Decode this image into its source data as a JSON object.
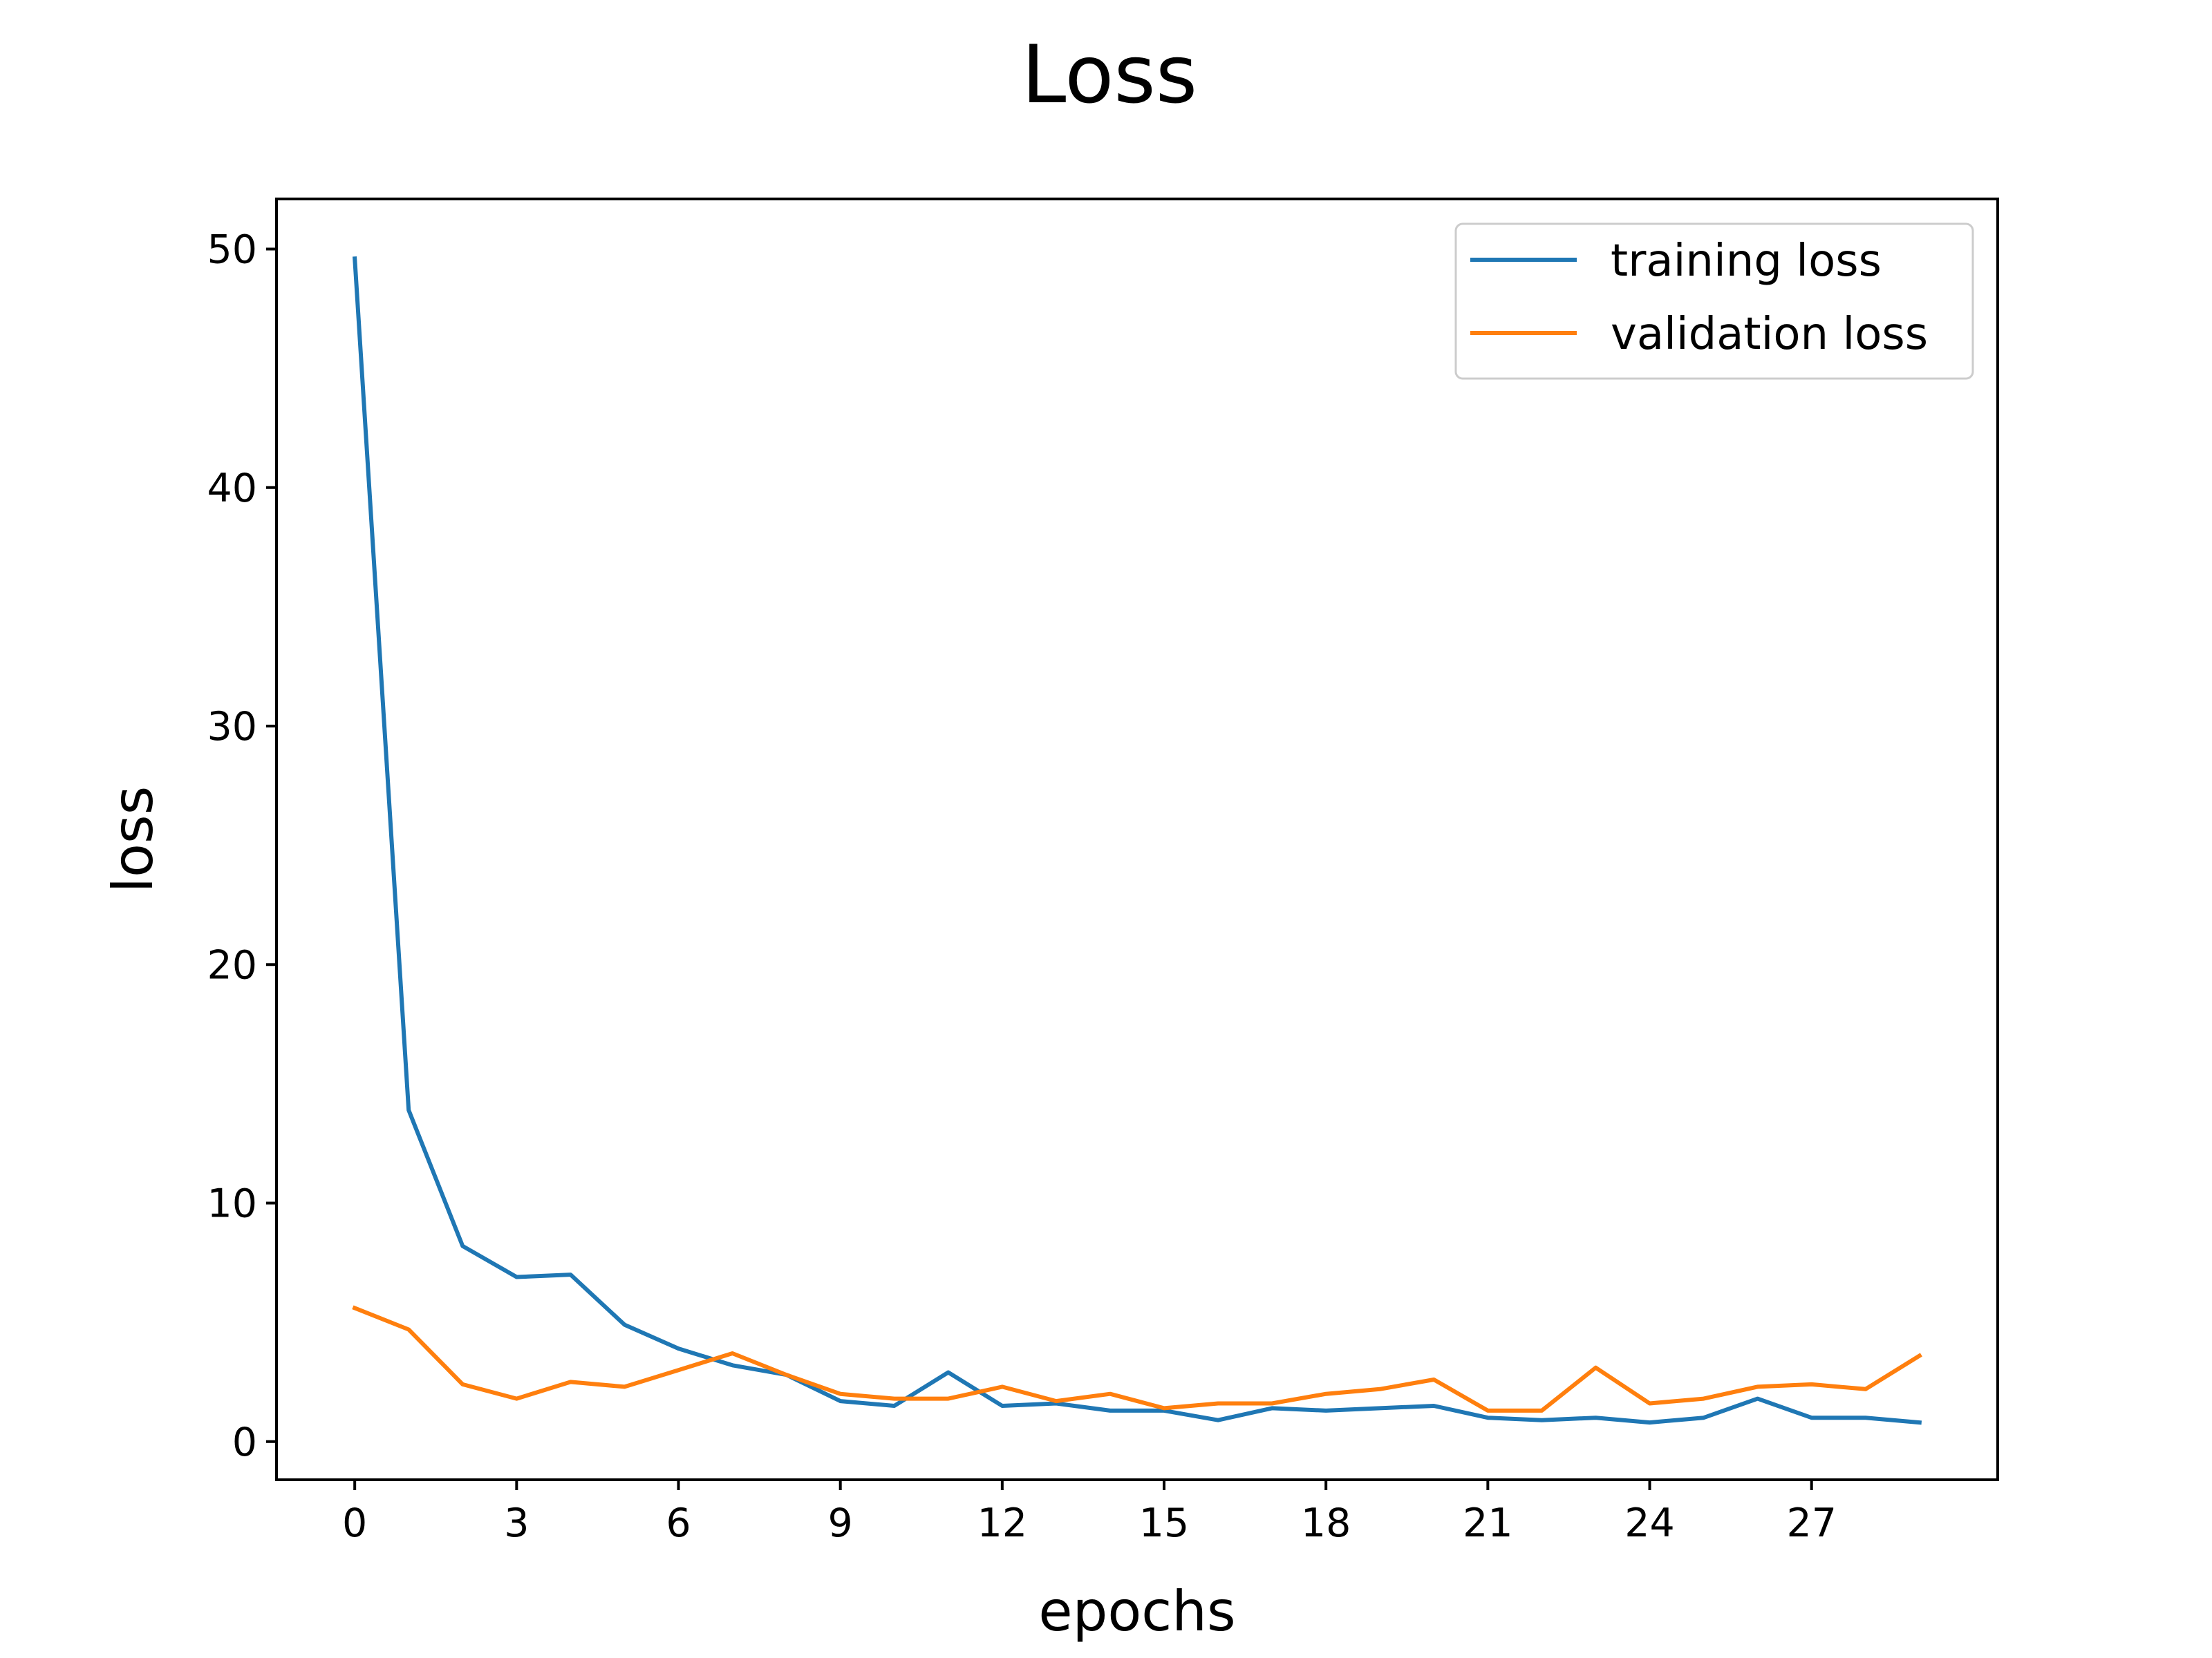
{
  "chart_data": {
    "type": "line",
    "title": "Loss",
    "xlabel": "epochs",
    "ylabel": "loss",
    "xlim": [
      -1.45,
      30.45
    ],
    "ylim": [
      -1.6,
      52.1
    ],
    "xticks": [
      0,
      3,
      6,
      9,
      12,
      15,
      18,
      21,
      24,
      27
    ],
    "yticks": [
      0,
      10,
      20,
      30,
      40,
      50
    ],
    "grid": false,
    "legend": "top-right",
    "x": [
      0,
      1,
      2,
      3,
      4,
      5,
      6,
      7,
      8,
      9,
      10,
      11,
      12,
      13,
      14,
      15,
      16,
      17,
      18,
      19,
      20,
      21,
      22,
      23,
      24,
      25,
      26,
      27,
      28,
      29
    ],
    "series": [
      {
        "name": "training loss",
        "color": "#1f77b4",
        "values": [
          49.6,
          13.9,
          8.2,
          6.9,
          7.0,
          4.9,
          3.9,
          3.2,
          2.8,
          1.7,
          1.5,
          2.9,
          1.5,
          1.6,
          1.3,
          1.3,
          0.9,
          1.4,
          1.3,
          1.4,
          1.5,
          1.0,
          0.9,
          1.0,
          0.8,
          1.0,
          1.8,
          1.0,
          1.0,
          0.8
        ]
      },
      {
        "name": "validation loss",
        "color": "#ff7f0e",
        "values": [
          5.6,
          4.7,
          2.4,
          1.8,
          2.5,
          2.3,
          3.0,
          3.7,
          2.8,
          2.0,
          1.8,
          1.8,
          2.3,
          1.7,
          2.0,
          1.4,
          1.6,
          1.6,
          2.0,
          2.2,
          2.6,
          1.3,
          1.3,
          3.1,
          1.6,
          1.8,
          2.3,
          2.4,
          2.2,
          3.6
        ]
      }
    ]
  }
}
